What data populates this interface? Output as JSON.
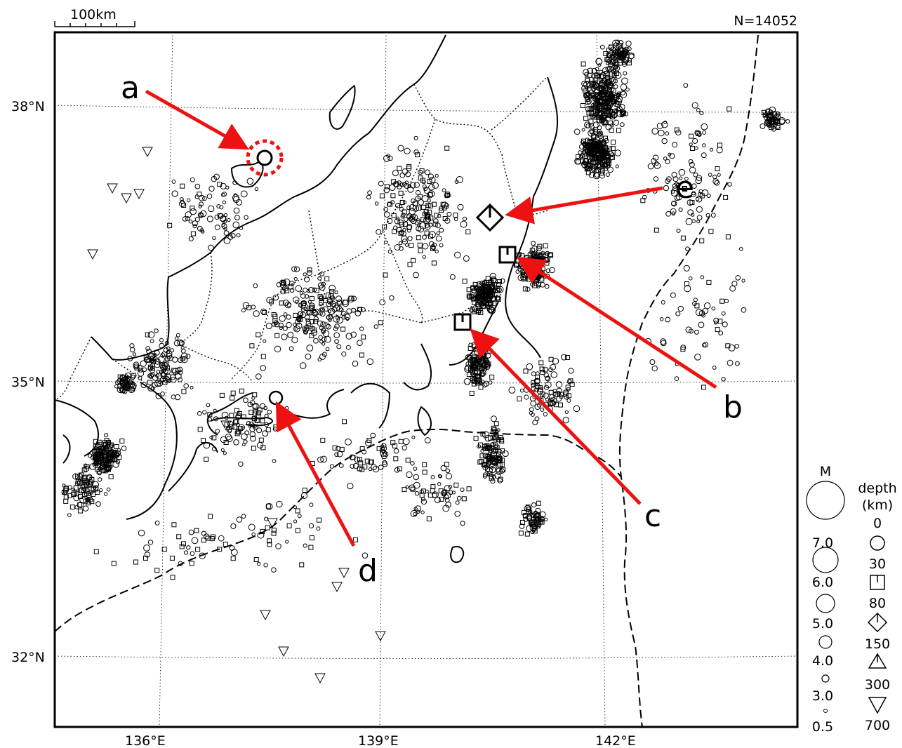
{
  "header": {
    "scale_label": "100km",
    "count_label": "N=14052"
  },
  "axes": {
    "longitude_labels": [
      "136°E",
      "139°E",
      "142°E"
    ],
    "latitude_labels": [
      "38°N",
      "35°N",
      "32°N"
    ]
  },
  "annotations": [
    {
      "letter": "a",
      "lon": 137.2,
      "lat": 37.3
    },
    {
      "letter": "b",
      "lon": 140.6,
      "lat": 36.5
    },
    {
      "letter": "c",
      "lon": 139.8,
      "lat": 35.7
    },
    {
      "letter": "d",
      "lon": 137.8,
      "lat": 34.9
    },
    {
      "letter": "e",
      "lon": 140.6,
      "lat": 36.8
    }
  ],
  "legend": {
    "magnitude_title": "M",
    "magnitudes": [
      "7.0",
      "6.0",
      "5.0",
      "4.0",
      "3.0",
      "0.5"
    ],
    "depth_title_1": "depth",
    "depth_title_2": "(km)",
    "depths": [
      "0",
      "30",
      "80",
      "150",
      "300",
      "700"
    ]
  },
  "colors": {
    "arrow": "#ee1111",
    "ink": "#000000"
  }
}
